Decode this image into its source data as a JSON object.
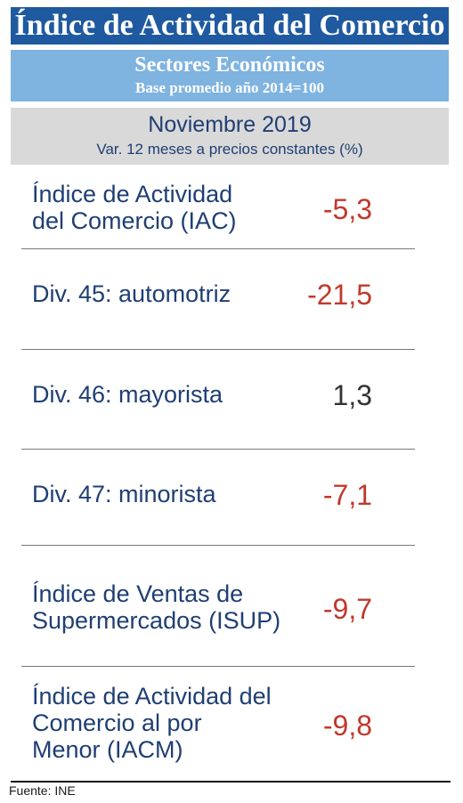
{
  "title": "Índice de Actividad del Comercio",
  "sector": {
    "heading": "Sectores Económicos",
    "base": "Base promedio año 2014=100"
  },
  "period": {
    "month": "Noviembre 2019",
    "subtitle": "Var. 12 meses a precios constantes (%)"
  },
  "rows": [
    {
      "label": "Índice de Actividad del Comercio (IAC)",
      "value": "-5,3",
      "color": "#c0392b"
    },
    {
      "label": "Div. 45: automotriz",
      "value": "-21,5",
      "color": "#c0392b"
    },
    {
      "label": "Div. 46: mayorista",
      "value": "1,3",
      "color": "#333333"
    },
    {
      "label": "Div. 47: minorista",
      "value": "-7,1",
      "color": "#c0392b"
    },
    {
      "label": "Índice de Ventas de Supermercados (ISUP)",
      "value": "-9,7",
      "color": "#c0392b"
    },
    {
      "label": "Índice de Actividad del Comercio al por Menor (IACM)",
      "value": "-9,8",
      "color": "#c0392b"
    }
  ],
  "source": "Fuente: INE"
}
